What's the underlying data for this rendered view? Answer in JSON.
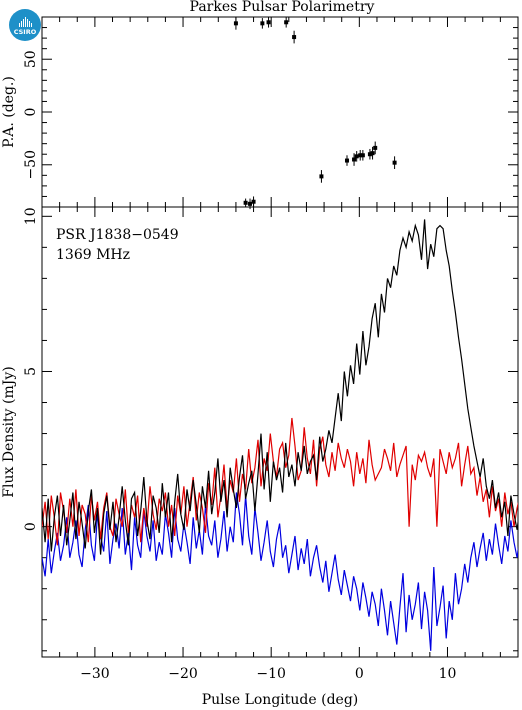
{
  "logo_text": "CSIRO",
  "title": "Parkes Pulsar Polarimetry",
  "annotation": {
    "pulsar": "PSR J1838−0549",
    "frequency": "1369 MHz"
  },
  "chart_data": [
    {
      "type": "scatter",
      "panel": "top",
      "ylabel": "P.A. (deg.)",
      "xlim": [
        -36,
        18
      ],
      "ylim": [
        -90,
        90
      ],
      "yticks": [
        -50,
        0,
        50
      ],
      "yticklabels": [
        "−50",
        "0",
        "50"
      ],
      "series": [
        {
          "x": [
            -14.0,
            -12.9,
            -12.4,
            -12.0,
            -11.0,
            -10.3,
            -8.3,
            -7.4,
            -4.3,
            -1.4,
            -0.6,
            -0.3,
            0.1,
            0.4,
            1.2,
            1.5,
            1.8,
            4.0
          ],
          "y": [
            84,
            -86,
            -87,
            -85,
            84,
            85,
            85,
            71,
            -61,
            -46,
            -45,
            -42,
            -41,
            -41,
            -40,
            -39,
            -34,
            -48
          ],
          "err": [
            6,
            4,
            5,
            5,
            5,
            5,
            5,
            6,
            6,
            5,
            6,
            5,
            5,
            5,
            5,
            6,
            6,
            6
          ]
        }
      ]
    },
    {
      "type": "line",
      "panel": "bottom",
      "xlabel": "Pulse Longitude (deg)",
      "ylabel": "Flux Density (mJy)",
      "xlim": [
        -36,
        18
      ],
      "ylim": [
        -4.2,
        10.3
      ],
      "xticks": [
        -30,
        -20,
        -10,
        0,
        10
      ],
      "xticklabels": [
        "−30",
        "−20",
        "−10",
        "0",
        "10"
      ],
      "yticks": [
        0,
        5,
        10
      ],
      "yticklabels": [
        "0",
        "5",
        "10"
      ],
      "x_start": -36,
      "x_step": 0.35,
      "series": [
        {
          "name": "",
          "color": "#000000",
          "values": [
            0.6,
            -0.5,
            0.9,
            -0.8,
            0.3,
            1.0,
            -0.3,
            0.7,
            -0.6,
            0.2,
            1.1,
            -0.4,
            0.8,
            0.1,
            -0.7,
            0.5,
            1.2,
            -0.2,
            0.6,
            -0.9,
            0.4,
            1.0,
            -0.1,
            0.8,
            -0.5,
            0.3,
            1.3,
            0.2,
            -0.6,
            0.9,
            1.1,
            -0.3,
            0.5,
            1.6,
            0.2,
            -0.4,
            1.0,
            0.6,
            -0.2,
            1.4,
            0.3,
            1.1,
            -0.5,
            0.8,
            1.7,
            0.4,
            -0.1,
            1.2,
            0.5,
            1.5,
            0.7,
            -0.2,
            1.3,
            0.6,
            1.8,
            0.4,
            1.1,
            2.2,
            0.8,
            1.5,
            0.3,
            1.9,
            1.2,
            0.6,
            1.6,
            2.3,
            0.9,
            1.4,
            1.8,
            0.5,
            1.7,
            3.0,
            1.2,
            2.4,
            0.8,
            2.1,
            1.5,
            1.9,
            1.1,
            2.7,
            1.6,
            2.0,
            1.3,
            2.4,
            1.8,
            2.6,
            1.7,
            2.1,
            2.3,
            1.5,
            2.9,
            2.1,
            2.5,
            3.1,
            2.7,
            3.5,
            4.3,
            3.4,
            5.0,
            4.2,
            5.2,
            4.6,
            5.9,
            4.9,
            6.3,
            5.2,
            5.8,
            6.7,
            7.2,
            6.1,
            7.5,
            6.9,
            8.0,
            7.7,
            8.4,
            8.1,
            8.9,
            9.3,
            9.0,
            9.5,
            9.2,
            9.7,
            9.4,
            8.6,
            9.9,
            8.3,
            9.1,
            8.7,
            9.6,
            9.7,
            9.6,
            8.9,
            8.4,
            7.6,
            6.9,
            6.1,
            5.4,
            4.6,
            3.8,
            3.2,
            2.6,
            2.1,
            1.6,
            2.2,
            1.3,
            0.9,
            1.5,
            0.6,
            1.1,
            0.3,
            0.8,
            -0.3,
            1.0,
            0.4,
            -0.1,
            0.7,
            0.2,
            -0.5,
            0.9,
            0.1,
            0.6,
            -0.4,
            0.8,
            -0.2,
            0.5,
            -0.6,
            0.3,
            1.2,
            -0.3,
            0.7,
            0.2,
            -0.5,
            1.0,
            -0.1
          ]
        },
        {
          "name": "",
          "color": "#e00000",
          "values": [
            0.0,
            0.8,
            -0.4,
            1.0,
            0.3,
            -0.6,
            1.1,
            0.5,
            -0.2,
            0.9,
            0.0,
            1.2,
            -0.3,
            0.7,
            0.4,
            -0.5,
            1.0,
            0.2,
            0.8,
            -0.4,
            0.6,
            1.1,
            0.0,
            -0.3,
            0.9,
            0.4,
            0.0,
            1.2,
            -0.2,
            0.7,
            0.3,
            1.0,
            -0.5,
            0.6,
            0.0,
            1.3,
            0.4,
            -0.1,
            0.9,
            0.5,
            1.1,
            0.0,
            0.7,
            -0.3,
            1.0,
            0.4,
            1.3,
            0.0,
            0.8,
            1.6,
            0.2,
            1.1,
            0.6,
            -0.2,
            1.4,
            0.7,
            1.9,
            0.3,
            1.0,
            2.0,
            0.6,
            1.5,
            1.1,
            2.2,
            0.8,
            1.7,
            1.2,
            2.5,
            1.4,
            1.9,
            2.8,
            1.3,
            2.2,
            1.8,
            3.0,
            2.1,
            1.6,
            2.5,
            2.7,
            1.9,
            2.3,
            3.5,
            2.6,
            1.5,
            1.8,
            3.2,
            2.2,
            1.7,
            2.8,
            1.3,
            2.5,
            2.9,
            2.0,
            1.6,
            2.4,
            1.8,
            2.7,
            2.2,
            1.9,
            2.5,
            2.1,
            1.3,
            2.4,
            1.7,
            2.2,
            1.4,
            2.8,
            2.0,
            1.5,
            1.7,
            1.9,
            2.5,
            2.2,
            1.8,
            2.7,
            1.6,
            2.0,
            2.3,
            2.6,
            0.0,
            2.0,
            1.5,
            2.3,
            2.1,
            2.4,
            1.9,
            1.6,
            2.2,
            0.0,
            2.5,
            2.1,
            1.7,
            2.4,
            1.9,
            2.2,
            2.7,
            1.3,
            2.0,
            2.6,
            1.7,
            1.9,
            1.0,
            1.6,
            0.8,
            1.2,
            0.3,
            1.3,
            0.5,
            0.9,
            0.0,
            1.1,
            0.4,
            0.8,
            0.0,
            0.6,
            1.0,
            0.2,
            0.0,
            0.7,
            0.3,
            0.0,
            0.5,
            0.0,
            0.4,
            0.0,
            0.3,
            0.0,
            0.0,
            0.2,
            0.0,
            0.0,
            0.0
          ]
        },
        {
          "name": "",
          "color": "#0000e0",
          "values": [
            -1.0,
            -1.6,
            -0.4,
            -1.5,
            -0.8,
            -0.2,
            -1.1,
            -0.6,
            0.3,
            -1.0,
            -0.5,
            0.2,
            -0.9,
            -1.3,
            -0.1,
            0.7,
            -0.6,
            -1.1,
            0.4,
            -0.3,
            -0.8,
            0.5,
            -1.2,
            -0.4,
            0.1,
            -0.7,
            0.6,
            -0.9,
            -0.2,
            -1.4,
            0.3,
            -0.6,
            -1.0,
            0.5,
            -0.3,
            -0.8,
            0.2,
            -1.1,
            -0.5,
            -0.9,
            0.4,
            -0.2,
            -1.0,
            0.6,
            -0.4,
            -0.8,
            0.1,
            -0.5,
            -1.2,
            0.3,
            -0.7,
            -0.1,
            -0.9,
            0.7,
            -0.3,
            -0.6,
            0.2,
            -1.0,
            -0.4,
            0.5,
            -0.8,
            0.0,
            -0.5,
            1.1,
            0.4,
            -0.6,
            1.0,
            -0.3,
            -0.9,
            0.6,
            -0.2,
            -1.1,
            -0.5,
            0.2,
            -0.8,
            -1.3,
            -0.4,
            0.1,
            -1.0,
            -0.6,
            -1.5,
            -0.9,
            -0.3,
            -1.4,
            -0.7,
            -1.2,
            -0.4,
            -1.6,
            -1.0,
            -0.6,
            -1.3,
            -1.8,
            -1.1,
            -2.1,
            -1.5,
            -0.9,
            -1.7,
            -2.2,
            -1.4,
            -1.9,
            -2.4,
            -1.6,
            -2.0,
            -2.7,
            -1.8,
            -2.3,
            -2.9,
            -2.1,
            -2.5,
            -3.2,
            -2.0,
            -2.7,
            -3.5,
            -2.4,
            -3.1,
            -3.8,
            -2.6,
            -1.5,
            -3.4,
            -2.2,
            -3.0,
            -2.5,
            -1.8,
            -3.3,
            -2.1,
            -2.7,
            -4.0,
            -1.3,
            -3.2,
            -2.6,
            -1.9,
            -3.6,
            -2.4,
            -3.0,
            -1.5,
            -2.5,
            -2.0,
            -1.2,
            -1.8,
            -1.0,
            -0.5,
            -1.3,
            -0.7,
            -0.2,
            -1.1,
            -0.4,
            -0.9,
            0.1,
            -0.6,
            -1.2,
            -0.3,
            -0.8,
            0.2,
            -0.5,
            -1.0,
            -0.2,
            -0.7,
            0.3,
            -0.4,
            -0.9,
            0.0,
            -0.6,
            -1.1,
            -0.2,
            0.4,
            -0.8,
            -0.3,
            -1.0,
            0.1,
            -0.5,
            -0.2,
            0.3,
            -0.7
          ]
        }
      ]
    }
  ]
}
